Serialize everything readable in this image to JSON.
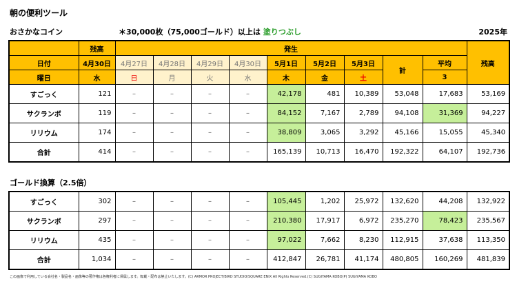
{
  "title": "朝の便利ツール",
  "subtitle": {
    "left": "おさかなコイン",
    "note": "＊30,000枚（75,000ゴールド）以上は",
    "note_fill": "塗りつぶし",
    "year": "2025年"
  },
  "header": {
    "balance_start": "残高",
    "occurrence": "発生",
    "date_label": "日付",
    "balance_date": "4月30日",
    "dates": [
      "4月27日",
      "4月28日",
      "4月29日",
      "4月30日",
      "5月1日",
      "5月2日",
      "5月3日"
    ],
    "total": "計",
    "average": "平均",
    "balance_end": "残高",
    "weekday_label": "曜日",
    "balance_weekday": "水",
    "weekdays": [
      "日",
      "月",
      "火",
      "水",
      "木",
      "金",
      "土"
    ],
    "average_days": 3
  },
  "coins": {
    "rows": [
      [
        "すごっく",
        "121",
        "–",
        "–",
        "–",
        "–",
        "42,178",
        "481",
        "10,389",
        "53,048",
        "17,683",
        "53,169"
      ],
      [
        "サクランボ",
        "119",
        "–",
        "–",
        "–",
        "–",
        "84,152",
        "7,167",
        "2,789",
        "94,108",
        "31,369",
        "94,227"
      ],
      [
        "リリウム",
        "174",
        "–",
        "–",
        "–",
        "–",
        "38,809",
        "3,065",
        "3,292",
        "45,166",
        "15,055",
        "45,340"
      ],
      [
        "合計",
        "414",
        "–",
        "–",
        "–",
        "–",
        "165,139",
        "10,713",
        "16,470",
        "192,322",
        "64,107",
        "192,736"
      ]
    ],
    "highlighted": [
      [
        0,
        6
      ],
      [
        1,
        6
      ],
      [
        2,
        6
      ],
      [
        1,
        10
      ]
    ]
  },
  "gold": {
    "title": "ゴールド換算（2.5倍）",
    "rows": [
      [
        "すごっく",
        "302",
        "–",
        "–",
        "–",
        "–",
        "105,445",
        "1,202",
        "25,972",
        "132,620",
        "44,208",
        "132,922"
      ],
      [
        "サクランボ",
        "297",
        "–",
        "–",
        "–",
        "–",
        "210,380",
        "17,917",
        "6,972",
        "235,270",
        "78,423",
        "235,567"
      ],
      [
        "リリウム",
        "435",
        "–",
        "–",
        "–",
        "–",
        "97,022",
        "7,662",
        "8,230",
        "112,915",
        "37,638",
        "113,350"
      ],
      [
        "合計",
        "1,034",
        "–",
        "–",
        "–",
        "–",
        "412,847",
        "26,781",
        "41,174",
        "480,805",
        "160,269",
        "481,839"
      ]
    ],
    "highlighted": [
      [
        0,
        6
      ],
      [
        1,
        6
      ],
      [
        2,
        6
      ],
      [
        1,
        10
      ]
    ]
  },
  "footer": "この画像で利用している会社名・製品名・画像等の著作権は各権利者に帰属します。転載・配布は禁止いたします。(C) ARMOR PROJECT/BIRD STUDIO/SQUARE ENIX All Rights Reserved.(C) SUGIYAMA KOBO(P) SUGIYAMA KOBO"
}
